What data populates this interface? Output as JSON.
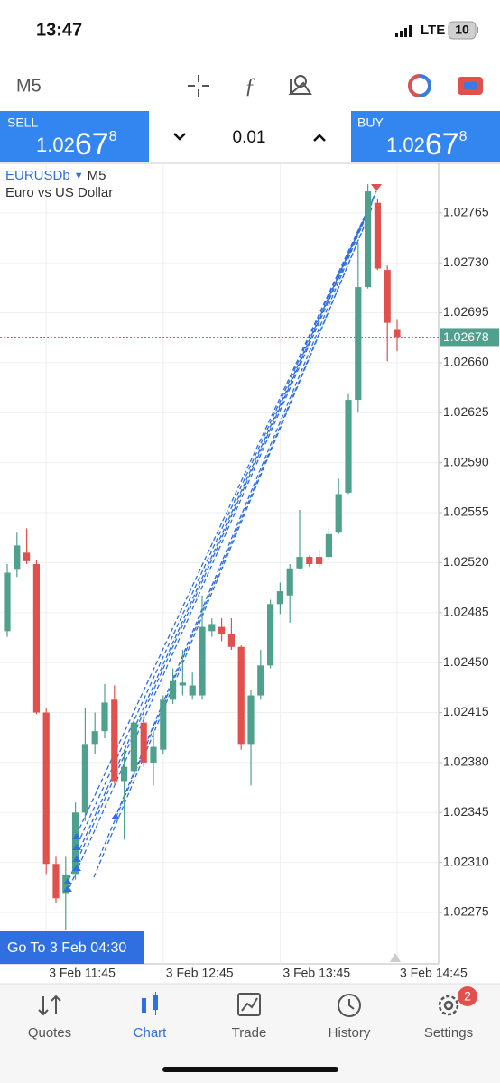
{
  "status_bar": {
    "time": "13:47",
    "network": "LTE",
    "battery": "10"
  },
  "toolbar": {
    "timeframe": "M5"
  },
  "trade_panel": {
    "sell": {
      "label": "SELL",
      "price_main": "1.02",
      "price_big": "67",
      "price_small": "8"
    },
    "lot": "0.01",
    "buy": {
      "label": "BUY",
      "price_main": "1.02",
      "price_big": "67",
      "price_small": "8"
    }
  },
  "chart_data": {
    "type": "candlestick",
    "symbol": "EURUSDb",
    "timeframe": "M5",
    "description": "Euro vs US Dollar",
    "categories": [
      null,
      null,
      null,
      null,
      "3 Feb 11:45",
      null,
      null,
      null,
      null,
      null,
      null,
      null,
      null,
      null,
      null,
      null,
      "3 Feb 12:45",
      null,
      null,
      null,
      null,
      null,
      null,
      null,
      null,
      null,
      null,
      null,
      "3 Feb 13:45",
      null,
      null,
      null,
      null,
      null,
      null,
      null,
      null,
      null,
      null,
      null,
      "3 Feb 14:45"
    ],
    "open": [
      1.02472,
      1.02515,
      1.02527,
      1.02519,
      1.02415,
      1.02309,
      1.02288,
      1.02302,
      1.02345,
      1.02393,
      1.02402,
      1.02424,
      1.02367,
      1.02374,
      1.02408,
      1.0238,
      1.02389,
      1.02424,
      1.02434,
      1.02427,
      1.02427,
      1.02472,
      1.02475,
      1.0247,
      1.02461,
      1.02393,
      1.02427,
      1.02448,
      1.02491,
      1.02497,
      1.02516,
      1.02524,
      1.02524,
      1.02524,
      1.02541,
      1.02569,
      1.02634,
      1.02713,
      1.02772,
      1.02725,
      1.02683
    ],
    "high": [
      1.02519,
      1.02541,
      1.02544,
      1.02522,
      1.02418,
      1.02314,
      1.02314,
      1.02352,
      1.02418,
      1.02415,
      1.02435,
      1.02434,
      1.02389,
      1.02412,
      1.02412,
      1.02402,
      1.02427,
      1.02446,
      1.02459,
      1.02443,
      1.02497,
      1.02481,
      1.02481,
      1.02481,
      1.02462,
      1.02431,
      1.02459,
      1.02494,
      1.02506,
      1.02519,
      1.02557,
      1.02525,
      1.02529,
      1.02544,
      1.02579,
      1.02638,
      1.02744,
      1.02785,
      1.02775,
      1.02728,
      1.0269
    ],
    "low": [
      1.02468,
      1.0251,
      1.02519,
      1.02414,
      1.02302,
      1.02282,
      1.02263,
      1.02298,
      1.02339,
      1.02386,
      1.02397,
      1.02365,
      1.02326,
      1.02371,
      1.02377,
      1.02364,
      1.02386,
      1.02421,
      1.02427,
      1.02424,
      1.02424,
      1.02468,
      1.02465,
      1.02459,
      1.02389,
      1.02364,
      1.02424,
      1.02446,
      1.02484,
      1.02478,
      1.02515,
      1.02517,
      1.02517,
      1.02522,
      1.0254,
      1.02568,
      1.02625,
      1.02712,
      1.02725,
      1.02661,
      1.02668
    ],
    "close": [
      1.02513,
      1.02532,
      1.02521,
      1.02415,
      1.02309,
      1.02285,
      1.02301,
      1.02345,
      1.02393,
      1.02402,
      1.02422,
      1.02367,
      1.02377,
      1.02408,
      1.0238,
      1.02391,
      1.02424,
      1.02437,
      1.02436,
      1.02434,
      1.02475,
      1.02477,
      1.0247,
      1.02461,
      1.02393,
      1.02427,
      1.02448,
      1.02491,
      1.025,
      1.02516,
      1.02524,
      1.02519,
      1.02519,
      1.0254,
      1.02568,
      1.02634,
      1.02713,
      1.0278,
      1.02726,
      1.02688,
      1.02678
    ],
    "up_color": "#4fa08d",
    "down_color": "#e0504c",
    "ylim": [
      1.02239,
      1.02799
    ],
    "yticks": [
      1.02765,
      {
        "value": 1.0273,
        "label": "1.02730"
      },
      1.02695,
      {
        "value": 1.0266,
        "label": "1.02660"
      },
      1.02625,
      {
        "value": 1.0259,
        "label": "1.02590"
      },
      1.02555,
      {
        "value": 1.0252,
        "label": "1.02520"
      },
      1.02485,
      {
        "value": 1.0245,
        "label": "1.02450"
      },
      1.02415,
      {
        "value": 1.0238,
        "label": "1.02380"
      },
      1.02345,
      {
        "value": 1.0231,
        "label": "1.02310"
      },
      1.02275
    ],
    "current_price": 1.02678,
    "grid": true
  },
  "goto_button": "Go To 3 Feb 04:30",
  "nav": {
    "items": [
      "Quotes",
      "Chart",
      "Trade",
      "History",
      "Settings"
    ],
    "active": 1,
    "badge": "2"
  }
}
